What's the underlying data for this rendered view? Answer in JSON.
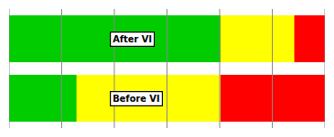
{
  "chart_data": {
    "type": "bar",
    "orientation": "horizontal",
    "stacked": true,
    "categories": [
      "After VI",
      "Before VI"
    ],
    "series": [
      {
        "color": "#00CC00",
        "values": [
          63,
          20
        ]
      },
      {
        "color": "#FFFF00",
        "values": [
          22,
          43
        ]
      },
      {
        "color": "#FF0000",
        "values": [
          9,
          31
        ]
      }
    ],
    "xlim": [
      0,
      94
    ],
    "xticks": [
      0,
      15.67,
      31.33,
      47,
      62.67,
      78.33,
      94
    ],
    "grid": true,
    "tick_labels": false
  }
}
